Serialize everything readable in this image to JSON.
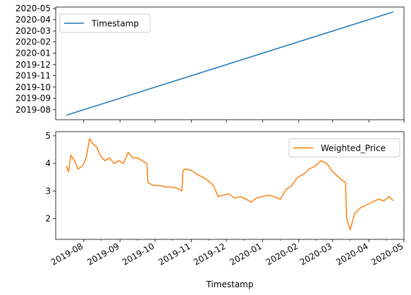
{
  "chart_data": [
    {
      "type": "line",
      "series": [
        {
          "name": "Timestamp",
          "color": "#1f77b4",
          "x": [
            "2019-07-17",
            "2020-04-22"
          ],
          "y": [
            "2019-07-17",
            "2020-04-22"
          ]
        }
      ],
      "xlim": [
        "2019-07-08",
        "2020-05-01"
      ],
      "ylim": [
        "2019-07-05",
        "2020-05-05"
      ],
      "yticks": [
        "2019-08",
        "2019-09",
        "2019-10",
        "2019-11",
        "2019-12",
        "2020-01",
        "2020-02",
        "2020-03",
        "2020-04",
        "2020-05"
      ],
      "legend": "top-left",
      "grid": false
    },
    {
      "type": "line",
      "xlabel": "Timestamp",
      "series": [
        {
          "name": "Weighted_Price",
          "color": "#ff7f0e",
          "x": [
            "2019-07-17",
            "2019-07-19",
            "2019-07-21",
            "2019-07-24",
            "2019-07-27",
            "2019-07-31",
            "2019-08-03",
            "2019-08-06",
            "2019-08-09",
            "2019-08-12",
            "2019-08-15",
            "2019-08-19",
            "2019-08-23",
            "2019-08-27",
            "2019-08-31",
            "2019-09-04",
            "2019-09-08",
            "2019-09-12",
            "2019-09-16",
            "2019-09-20",
            "2019-09-24",
            "2019-09-25",
            "2019-09-30",
            "2019-10-05",
            "2019-10-10",
            "2019-10-15",
            "2019-10-20",
            "2019-10-24",
            "2019-10-25",
            "2019-10-27",
            "2019-11-01",
            "2019-11-06",
            "2019-11-11",
            "2019-11-16",
            "2019-11-20",
            "2019-11-24",
            "2019-11-28",
            "2019-12-03",
            "2019-12-08",
            "2019-12-13",
            "2019-12-18",
            "2019-12-22",
            "2019-12-27",
            "2020-01-01",
            "2020-01-06",
            "2020-01-11",
            "2020-01-16",
            "2020-01-21",
            "2020-01-26",
            "2020-01-31",
            "2020-02-05",
            "2020-02-10",
            "2020-02-15",
            "2020-02-20",
            "2020-02-25",
            "2020-03-01",
            "2020-03-06",
            "2020-03-09",
            "2020-03-12",
            "2020-03-13",
            "2020-03-16",
            "2020-03-20",
            "2020-03-25",
            "2020-03-30",
            "2020-04-04",
            "2020-04-09",
            "2020-04-14",
            "2020-04-18",
            "2020-04-22"
          ],
          "y": [
            3.9,
            3.7,
            4.3,
            4.1,
            3.8,
            3.9,
            4.2,
            4.9,
            4.7,
            4.6,
            4.3,
            4.1,
            4.2,
            4.0,
            4.1,
            4.0,
            4.4,
            4.2,
            4.2,
            4.1,
            4.0,
            3.3,
            3.2,
            3.2,
            3.15,
            3.15,
            3.1,
            3.0,
            3.75,
            3.8,
            3.75,
            3.6,
            3.5,
            3.35,
            3.2,
            2.8,
            2.85,
            2.9,
            2.75,
            2.8,
            2.7,
            2.6,
            2.75,
            2.8,
            2.85,
            2.8,
            2.7,
            3.05,
            3.2,
            3.5,
            3.6,
            3.8,
            3.9,
            4.1,
            4.0,
            3.7,
            3.5,
            3.4,
            3.3,
            2.0,
            1.6,
            2.2,
            2.4,
            2.5,
            2.6,
            2.7,
            2.65,
            2.8,
            2.65
          ]
        }
      ],
      "xlim": [
        "2019-07-08",
        "2020-05-01"
      ],
      "ylim": [
        1.25,
        5.15
      ],
      "yticks": [
        2,
        3,
        4,
        5
      ],
      "xticks": [
        "2019-08",
        "2019-09",
        "2019-10",
        "2019-11",
        "2019-12",
        "2020-01",
        "2020-02",
        "2020-03",
        "2020-04",
        "2020-05"
      ],
      "legend": "top-right",
      "grid": false
    }
  ]
}
